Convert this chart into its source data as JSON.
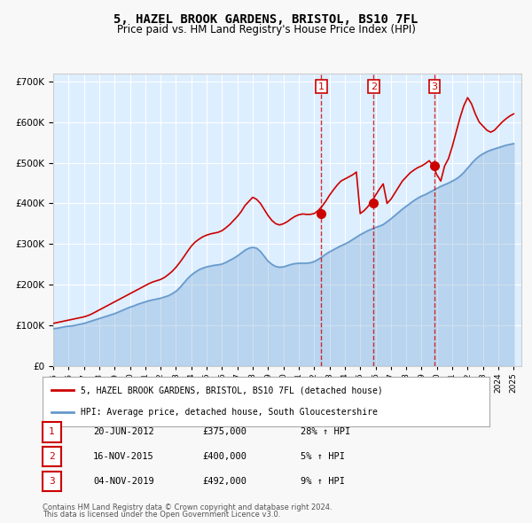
{
  "title": "5, HAZEL BROOK GARDENS, BRISTOL, BS10 7FL",
  "subtitle": "Price paid vs. HM Land Registry's House Price Index (HPI)",
  "legend_house": "5, HAZEL BROOK GARDENS, BRISTOL, BS10 7FL (detached house)",
  "legend_hpi": "HPI: Average price, detached house, South Gloucestershire",
  "footer1": "Contains HM Land Registry data © Crown copyright and database right 2024.",
  "footer2": "This data is licensed under the Open Government Licence v3.0.",
  "house_color": "#cc0000",
  "hpi_color": "#6699cc",
  "background_color": "#ddeeff",
  "plot_bg": "#ffffff",
  "xlim": [
    1995.0,
    2025.5
  ],
  "ylim": [
    0,
    720000
  ],
  "yticks": [
    0,
    100000,
    200000,
    300000,
    400000,
    500000,
    600000,
    700000
  ],
  "xticks": [
    1995,
    1996,
    1997,
    1998,
    1999,
    2000,
    2001,
    2002,
    2003,
    2004,
    2005,
    2006,
    2007,
    2008,
    2009,
    2010,
    2011,
    2012,
    2013,
    2014,
    2015,
    2016,
    2017,
    2018,
    2019,
    2020,
    2021,
    2022,
    2023,
    2024,
    2025
  ],
  "sale_dates": [
    2012.47,
    2015.88,
    2019.84
  ],
  "sale_prices": [
    375000,
    400000,
    492000
  ],
  "sale_labels": [
    "1",
    "2",
    "3"
  ],
  "sale_info": [
    {
      "label": "1",
      "date": "20-JUN-2012",
      "price": "£375,000",
      "pct": "28% ↑ HPI"
    },
    {
      "label": "2",
      "date": "16-NOV-2015",
      "price": "£400,000",
      "pct": "5% ↑ HPI"
    },
    {
      "label": "3",
      "date": "04-NOV-2019",
      "price": "£492,000",
      "pct": "9% ↑ HPI"
    }
  ],
  "hpi_x": [
    1995,
    1995.25,
    1995.5,
    1995.75,
    1996,
    1996.25,
    1996.5,
    1996.75,
    1997,
    1997.25,
    1997.5,
    1997.75,
    1998,
    1998.25,
    1998.5,
    1998.75,
    1999,
    1999.25,
    1999.5,
    1999.75,
    2000,
    2000.25,
    2000.5,
    2000.75,
    2001,
    2001.25,
    2001.5,
    2001.75,
    2002,
    2002.25,
    2002.5,
    2002.75,
    2003,
    2003.25,
    2003.5,
    2003.75,
    2004,
    2004.25,
    2004.5,
    2004.75,
    2005,
    2005.25,
    2005.5,
    2005.75,
    2006,
    2006.25,
    2006.5,
    2006.75,
    2007,
    2007.25,
    2007.5,
    2007.75,
    2008,
    2008.25,
    2008.5,
    2008.75,
    2009,
    2009.25,
    2009.5,
    2009.75,
    2010,
    2010.25,
    2010.5,
    2010.75,
    2011,
    2011.25,
    2011.5,
    2011.75,
    2012,
    2012.25,
    2012.5,
    2012.75,
    2013,
    2013.25,
    2013.5,
    2013.75,
    2014,
    2014.25,
    2014.5,
    2014.75,
    2015,
    2015.25,
    2015.5,
    2015.75,
    2016,
    2016.25,
    2016.5,
    2016.75,
    2017,
    2017.25,
    2017.5,
    2017.75,
    2018,
    2018.25,
    2018.5,
    2018.75,
    2019,
    2019.25,
    2019.5,
    2019.75,
    2020,
    2020.25,
    2020.5,
    2020.75,
    2021,
    2021.25,
    2021.5,
    2021.75,
    2022,
    2022.25,
    2022.5,
    2022.75,
    2023,
    2023.25,
    2023.5,
    2023.75,
    2024,
    2024.25,
    2024.5,
    2024.75,
    2025
  ],
  "hpi_y": [
    92000,
    93000,
    95000,
    97000,
    98000,
    99000,
    101000,
    103000,
    105000,
    108000,
    111000,
    114000,
    117000,
    120000,
    123000,
    126000,
    129000,
    133000,
    137000,
    141000,
    145000,
    148000,
    152000,
    155000,
    158000,
    161000,
    163000,
    165000,
    167000,
    170000,
    173000,
    178000,
    184000,
    193000,
    204000,
    215000,
    224000,
    231000,
    237000,
    241000,
    244000,
    246000,
    248000,
    249000,
    251000,
    255000,
    260000,
    265000,
    271000,
    278000,
    285000,
    290000,
    292000,
    290000,
    282000,
    270000,
    258000,
    250000,
    245000,
    243000,
    244000,
    247000,
    250000,
    252000,
    253000,
    253000,
    253000,
    254000,
    257000,
    262000,
    268000,
    275000,
    281000,
    286000,
    291000,
    296000,
    300000,
    305000,
    311000,
    317000,
    323000,
    328000,
    333000,
    337000,
    341000,
    344000,
    348000,
    355000,
    362000,
    370000,
    378000,
    386000,
    393000,
    400000,
    407000,
    413000,
    418000,
    422000,
    427000,
    432000,
    437000,
    442000,
    446000,
    450000,
    455000,
    460000,
    467000,
    476000,
    487000,
    498000,
    508000,
    516000,
    522000,
    527000,
    531000,
    534000,
    537000,
    540000,
    543000,
    545000,
    547000
  ],
  "house_x": [
    1995,
    1995.25,
    1995.5,
    1995.75,
    1996,
    1996.25,
    1996.5,
    1996.75,
    1997,
    1997.25,
    1997.5,
    1997.75,
    1998,
    1998.25,
    1998.5,
    1998.75,
    1999,
    1999.25,
    1999.5,
    1999.75,
    2000,
    2000.25,
    2000.5,
    2000.75,
    2001,
    2001.25,
    2001.5,
    2001.75,
    2002,
    2002.25,
    2002.5,
    2002.75,
    2003,
    2003.25,
    2003.5,
    2003.75,
    2004,
    2004.25,
    2004.5,
    2004.75,
    2005,
    2005.25,
    2005.5,
    2005.75,
    2006,
    2006.25,
    2006.5,
    2006.75,
    2007,
    2007.25,
    2007.5,
    2007.75,
    2008,
    2008.25,
    2008.5,
    2008.75,
    2009,
    2009.25,
    2009.5,
    2009.75,
    2010,
    2010.25,
    2010.5,
    2010.75,
    2011,
    2011.25,
    2011.5,
    2011.75,
    2012,
    2012.25,
    2012.5,
    2012.75,
    2013,
    2013.25,
    2013.5,
    2013.75,
    2014,
    2014.25,
    2014.5,
    2014.75,
    2015,
    2015.25,
    2015.5,
    2015.75,
    2016,
    2016.25,
    2016.5,
    2016.75,
    2017,
    2017.25,
    2017.5,
    2017.75,
    2018,
    2018.25,
    2018.5,
    2018.75,
    2019,
    2019.25,
    2019.5,
    2019.75,
    2020,
    2020.25,
    2020.5,
    2020.75,
    2021,
    2021.25,
    2021.5,
    2021.75,
    2022,
    2022.25,
    2022.5,
    2022.75,
    2023,
    2023.25,
    2023.5,
    2023.75,
    2024,
    2024.25,
    2024.5,
    2024.75,
    2025
  ],
  "house_y": [
    105000,
    107000,
    109000,
    111000,
    113000,
    115000,
    117000,
    119000,
    121000,
    124000,
    128000,
    133000,
    138000,
    143000,
    148000,
    153000,
    158000,
    163000,
    168000,
    173000,
    178000,
    183000,
    188000,
    193000,
    198000,
    203000,
    207000,
    210000,
    213000,
    218000,
    225000,
    233000,
    243000,
    255000,
    268000,
    282000,
    295000,
    305000,
    312000,
    318000,
    322000,
    325000,
    327000,
    329000,
    333000,
    340000,
    348000,
    358000,
    368000,
    380000,
    395000,
    405000,
    415000,
    410000,
    400000,
    385000,
    370000,
    358000,
    350000,
    347000,
    350000,
    355000,
    362000,
    368000,
    372000,
    374000,
    373000,
    373000,
    375000,
    382000,
    392000,
    405000,
    420000,
    433000,
    445000,
    455000,
    460000,
    465000,
    470000,
    477000,
    375000,
    382000,
    392000,
    405000,
    420000,
    435000,
    448000,
    400000,
    410000,
    425000,
    440000,
    455000,
    465000,
    475000,
    482000,
    488000,
    492000,
    498000,
    505000,
    492000,
    470000,
    455000,
    492000,
    510000,
    540000,
    575000,
    610000,
    640000,
    660000,
    645000,
    620000,
    600000,
    590000,
    580000,
    575000,
    580000,
    590000,
    600000,
    608000,
    615000,
    620000
  ]
}
